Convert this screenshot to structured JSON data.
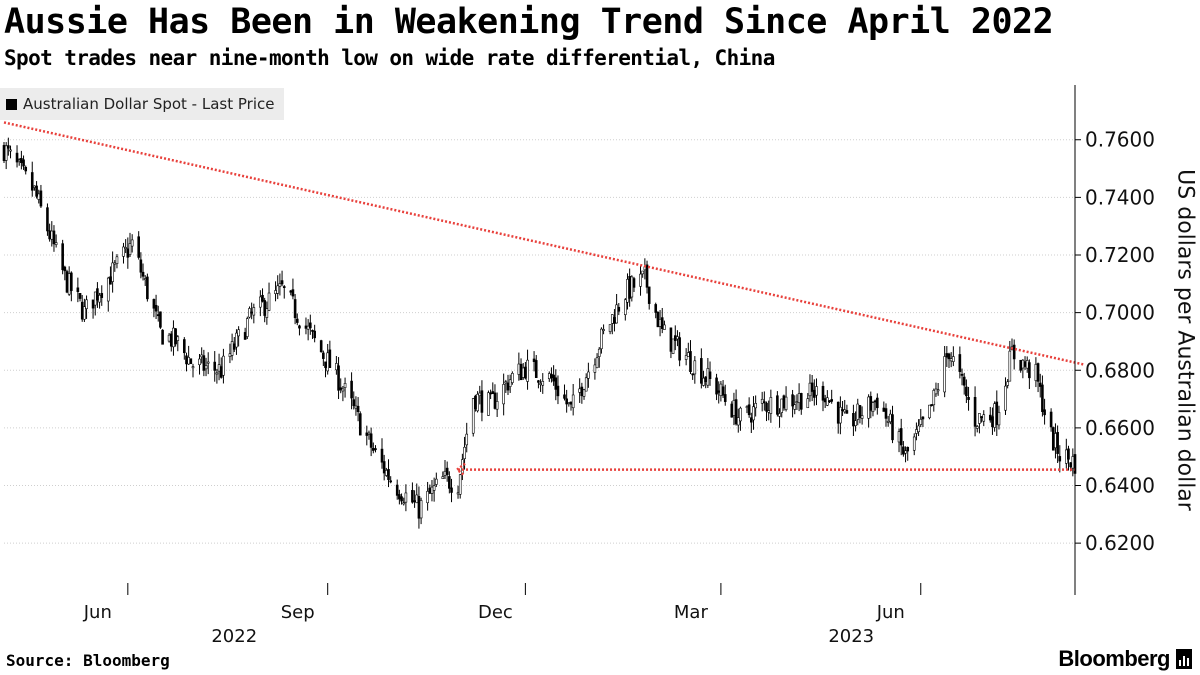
{
  "title": "Aussie Has Been in Weakening Trend Since April 2022",
  "subtitle": "Spot trades near nine-month low on wide rate differential, China",
  "source": "Source: Bloomberg",
  "brand": "Bloomberg",
  "brand_icon": "bloomberg-terminal-icon",
  "colors": {
    "candles": "#000000",
    "trendline": "#e8413c",
    "axis": "#000000",
    "legend_bg": "#ececec"
  },
  "chart_data": {
    "type": "candlestick",
    "title": "Aussie Has Been in Weakening Trend Since April 2022",
    "subtitle": "Spot trades near nine-month low on wide rate differential, China",
    "legend": "Australian Dollar Spot - Last Price",
    "legend_position": "top-left",
    "ylabel": "US dollars per Australian dollar",
    "ylim": [
      0.602,
      0.779
    ],
    "yticks": [
      0.62,
      0.64,
      0.66,
      0.68,
      0.7,
      0.72,
      0.74,
      0.76
    ],
    "ytick_labels": [
      "0.6200",
      "0.6400",
      "0.6600",
      "0.6800",
      "0.7000",
      "0.7200",
      "0.7400",
      "0.7600"
    ],
    "xlim": [
      "2022-04-05",
      "2023-08-11"
    ],
    "xticks": [
      {
        "date": "2022-06-01",
        "label": "Jun"
      },
      {
        "date": "2022-09-01",
        "label": "Sep"
      },
      {
        "date": "2022-12-01",
        "label": "Dec"
      },
      {
        "date": "2023-03-01",
        "label": "Mar"
      },
      {
        "date": "2023-06-01",
        "label": "Jun"
      }
    ],
    "year_labels": [
      {
        "date": "2022-07-20",
        "label": "2022"
      },
      {
        "date": "2023-04-30",
        "label": "2023"
      }
    ],
    "series": [
      {
        "name": "Australian Dollar Spot - Last Price",
        "x": [
          "2022-04-05",
          "2022-04-19",
          "2022-05-03",
          "2022-05-12",
          "2022-05-17",
          "2022-05-26",
          "2022-06-03",
          "2022-06-16",
          "2022-06-23",
          "2022-07-01",
          "2022-07-14",
          "2022-07-28",
          "2022-08-11",
          "2022-08-26",
          "2022-09-06",
          "2022-09-22",
          "2022-10-01",
          "2022-10-13",
          "2022-10-24",
          "2022-10-31",
          "2022-11-07",
          "2022-11-15",
          "2022-11-24",
          "2022-12-01",
          "2022-12-13",
          "2022-12-22",
          "2023-01-05",
          "2023-01-16",
          "2023-01-25",
          "2023-02-02",
          "2023-02-13",
          "2023-02-28",
          "2023-03-10",
          "2023-03-20",
          "2023-04-04",
          "2023-04-17",
          "2023-04-28",
          "2023-05-12",
          "2023-05-25",
          "2023-06-05",
          "2023-06-14",
          "2023-06-26",
          "2023-07-06",
          "2023-07-13",
          "2023-07-24",
          "2023-07-31",
          "2023-08-04",
          "2023-08-11"
        ],
        "y": [
          0.757,
          0.742,
          0.712,
          0.7,
          0.706,
          0.715,
          0.724,
          0.693,
          0.69,
          0.682,
          0.68,
          0.699,
          0.708,
          0.69,
          0.677,
          0.652,
          0.641,
          0.632,
          0.642,
          0.641,
          0.671,
          0.668,
          0.677,
          0.681,
          0.677,
          0.666,
          0.691,
          0.707,
          0.712,
          0.693,
          0.685,
          0.673,
          0.663,
          0.668,
          0.67,
          0.673,
          0.661,
          0.67,
          0.65,
          0.665,
          0.687,
          0.663,
          0.665,
          0.686,
          0.678,
          0.657,
          0.651,
          0.648
        ]
      }
    ],
    "annotations": [
      {
        "type": "trendline",
        "style": "dotted",
        "from": {
          "date": "2022-04-05",
          "value": 0.766
        },
        "to": {
          "date": "2023-08-15",
          "value": 0.682
        }
      },
      {
        "type": "support-line",
        "style": "dotted",
        "arrow": "left",
        "from": {
          "date": "2022-10-31",
          "value": 0.6455
        },
        "to": {
          "date": "2023-08-11",
          "value": 0.6455
        }
      }
    ]
  }
}
